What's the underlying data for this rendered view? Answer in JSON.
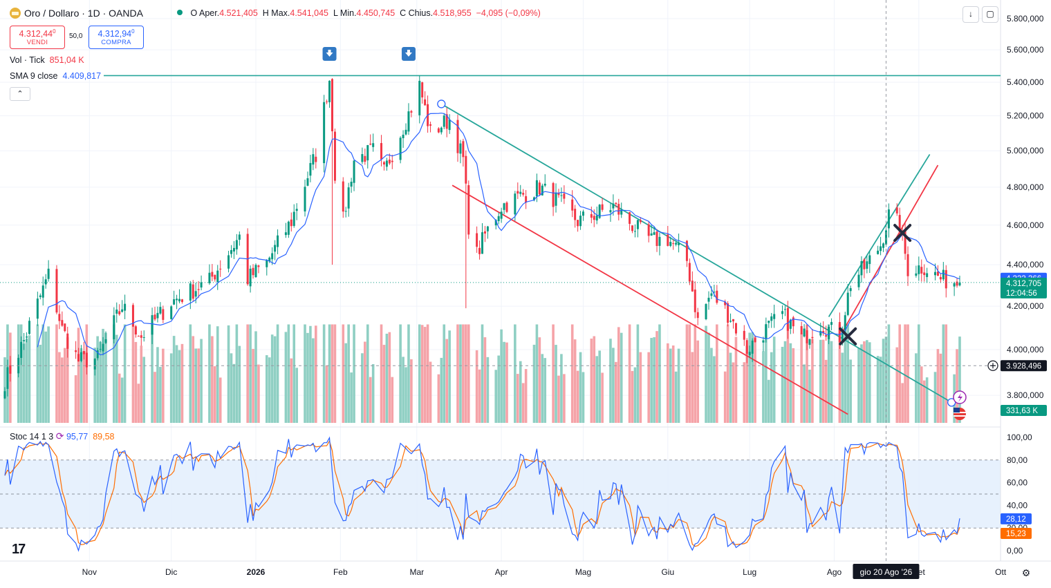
{
  "header": {
    "symbol_title": "Oro / Dollaro · 1D · OANDA",
    "open_label": "O",
    "open_prefix": "Aper.",
    "open_value": "4.521,405",
    "high_label": "H",
    "high_prefix": "Max.",
    "high_value": "4.541,045",
    "low_label": "L",
    "low_prefix": "Min.",
    "low_value": "4.450,745",
    "close_label": "C",
    "close_prefix": "Chius.",
    "close_value": "4.518,955",
    "change_value": "−4,095 (−0,09%)"
  },
  "trade": {
    "sell_price": "4.312,44",
    "sell_price_sup": "0",
    "sell_label": "VENDI",
    "spread": "50,0",
    "buy_price": "4.312,94",
    "buy_price_sup": "0",
    "buy_label": "COMPRA"
  },
  "indicators": {
    "vol_name": "Vol · Tick",
    "vol_value": "851,04 K",
    "sma_name": "SMA 9 close",
    "sma_value": "4.409,817",
    "collapse_icon": "chevron-up-icon"
  },
  "toolbar": {
    "download_icon": "arrow-down-icon",
    "fullscreen_icon": "fullscreen-icon"
  },
  "stoch": {
    "name": "Stoc 14 1 3",
    "k_value": "95,77",
    "d_value": "89,58",
    "k_color": "#2962ff",
    "d_color": "#ff6d00",
    "last_k_badge": "28,12",
    "last_d_badge": "15,23",
    "ticks": [
      "100,00",
      "80,00",
      "60,00",
      "40,00",
      "20,00",
      "0,00"
    ]
  },
  "price_axis": {
    "ticks": [
      "5.800,000",
      "5.600,000",
      "5.400,000",
      "5.200,000",
      "5.000,000",
      "4.800,000",
      "4.600,000",
      "4.400,000",
      "4.200,000",
      "4.000,000",
      "3.800,000"
    ],
    "sma_badge": "4.333,366",
    "price_badge": "4.312,705",
    "countdown": "12:04:56",
    "crosshair_badge": "3.928,496",
    "volume_badge": "331,63 K"
  },
  "time_axis": {
    "labels": [
      "Nov",
      "Dic",
      "2026",
      "Feb",
      "Mar",
      "Apr",
      "Mag",
      "Giu",
      "Lug",
      "Ago",
      "Set",
      "Ott"
    ],
    "cursor_label": "gio 20 Ago '26"
  },
  "colors": {
    "up": "#089981",
    "down": "#f23645",
    "sma": "#2962ff",
    "trendline": "#26a69a",
    "channel_red": "#f23645",
    "vol_up": "#8fcfc3",
    "vol_down": "#f5a3a8"
  },
  "chart_data": [
    {
      "type": "candlestick",
      "series_name": "Oro / Dollaro",
      "timeframe": "1D",
      "x_range": [
        "2025-10-01",
        "2026-09-16"
      ],
      "ylim": [
        3700,
        5800
      ],
      "log_scale": true,
      "grid": true,
      "anchors": [
        {
          "date": "2025-10-01",
          "close": 3860
        },
        {
          "date": "2025-10-08",
          "close": 4040
        },
        {
          "date": "2025-10-17",
          "close": 4350
        },
        {
          "date": "2025-10-22",
          "close": 4090
        },
        {
          "date": "2025-10-28",
          "close": 3950
        },
        {
          "date": "2025-11-04",
          "close": 3960
        },
        {
          "date": "2025-11-13",
          "close": 4200
        },
        {
          "date": "2025-11-20",
          "close": 4060
        },
        {
          "date": "2025-12-01",
          "close": 4220
        },
        {
          "date": "2025-12-15",
          "close": 4320
        },
        {
          "date": "2025-12-26",
          "close": 4540
        },
        {
          "date": "2025-12-29",
          "close": 4330
        },
        {
          "date": "2026-01-05",
          "close": 4410
        },
        {
          "date": "2026-01-14",
          "close": 4620
        },
        {
          "date": "2026-01-23",
          "close": 4980
        },
        {
          "date": "2026-01-28",
          "close": 5420
        },
        {
          "date": "2026-01-30",
          "close": 4880
        },
        {
          "date": "2026-02-02",
          "close": 4620
        },
        {
          "date": "2026-02-06",
          "close": 4950
        },
        {
          "date": "2026-02-13",
          "close": 5000
        },
        {
          "date": "2026-02-17",
          "close": 4880
        },
        {
          "date": "2026-02-27",
          "close": 5250
        },
        {
          "date": "2026-03-02",
          "close": 5380
        },
        {
          "date": "2026-03-06",
          "close": 5100
        },
        {
          "date": "2026-03-13",
          "close": 5180
        },
        {
          "date": "2026-03-18",
          "close": 4950
        },
        {
          "date": "2026-03-20",
          "close": 4600
        },
        {
          "date": "2026-03-23",
          "close": 4450
        },
        {
          "date": "2026-03-26",
          "close": 4550
        },
        {
          "date": "2026-04-01",
          "close": 4700
        },
        {
          "date": "2026-04-09",
          "close": 4760
        },
        {
          "date": "2026-04-15",
          "close": 4800
        },
        {
          "date": "2026-04-22",
          "close": 4720
        },
        {
          "date": "2026-04-29",
          "close": 4620
        },
        {
          "date": "2026-05-06",
          "close": 4660
        },
        {
          "date": "2026-05-12",
          "close": 4700
        },
        {
          "date": "2026-05-19",
          "close": 4600
        },
        {
          "date": "2026-05-26",
          "close": 4520
        },
        {
          "date": "2026-06-01",
          "close": 4530
        },
        {
          "date": "2026-06-08",
          "close": 4420
        },
        {
          "date": "2026-06-12",
          "close": 4130
        },
        {
          "date": "2026-06-17",
          "close": 4260
        },
        {
          "date": "2026-06-24",
          "close": 4150
        },
        {
          "date": "2026-06-30",
          "close": 4000
        },
        {
          "date": "2026-07-06",
          "close": 4080
        },
        {
          "date": "2026-07-13",
          "close": 4160
        },
        {
          "date": "2026-07-20",
          "close": 4050
        },
        {
          "date": "2026-07-27",
          "close": 4120
        },
        {
          "date": "2026-08-03",
          "close": 4060
        },
        {
          "date": "2026-08-07",
          "close": 4310
        },
        {
          "date": "2026-08-13",
          "close": 4400
        },
        {
          "date": "2026-08-18",
          "close": 4500
        },
        {
          "date": "2026-08-21",
          "close": 4650
        },
        {
          "date": "2026-08-25",
          "close": 4600
        },
        {
          "date": "2026-08-28",
          "close": 4380
        },
        {
          "date": "2026-09-03",
          "close": 4390
        },
        {
          "date": "2026-09-09",
          "close": 4330
        },
        {
          "date": "2026-09-16",
          "close": 4313
        }
      ],
      "spikes": [
        {
          "date": "2026-01-29",
          "low": 4400
        },
        {
          "date": "2026-03-19",
          "low": 4190
        }
      ],
      "overlays": {
        "sma": {
          "name": "SMA 9 close",
          "last": 4409.817
        },
        "horizontal_line": {
          "price": 5440
        },
        "descending_trendline": {
          "from": {
            "date": "2026-03-10",
            "price": 5270
          },
          "to": {
            "date": "2026-09-13",
            "price": 3770
          }
        },
        "descending_red_line": {
          "from": {
            "date": "2026-03-14",
            "price": 4810
          },
          "to": {
            "date": "2026-08-06",
            "price": 3720
          }
        },
        "ascending_green_line": {
          "from": {
            "date": "2026-07-30",
            "price": 4150
          },
          "to": {
            "date": "2026-09-05",
            "price": 4980
          }
        },
        "ascending_red_line": {
          "from": {
            "date": "2026-08-04",
            "price": 4080
          },
          "to": {
            "date": "2026-09-08",
            "price": 4920
          }
        },
        "x_markers": [
          {
            "date": "2026-08-06",
            "price": 4060
          },
          {
            "date": "2026-08-26",
            "price": 4560
          }
        ],
        "arrow_markers": [
          {
            "date": "2026-01-28"
          },
          {
            "date": "2026-02-26"
          }
        ],
        "crosshair": {
          "date": "2026-08-20",
          "price": 3928.496
        }
      }
    },
    {
      "type": "bar",
      "series_name": "Vol · Tick",
      "last": "851,04 K",
      "y_badge": "331,63 K"
    },
    {
      "type": "line",
      "series_name": "Stoc 14 1 3",
      "ylim": [
        0,
        100
      ],
      "bands": [
        20,
        50,
        80
      ],
      "series": [
        {
          "name": "%K",
          "last": 28.12
        },
        {
          "name": "%D",
          "last": 15.23
        }
      ]
    }
  ]
}
